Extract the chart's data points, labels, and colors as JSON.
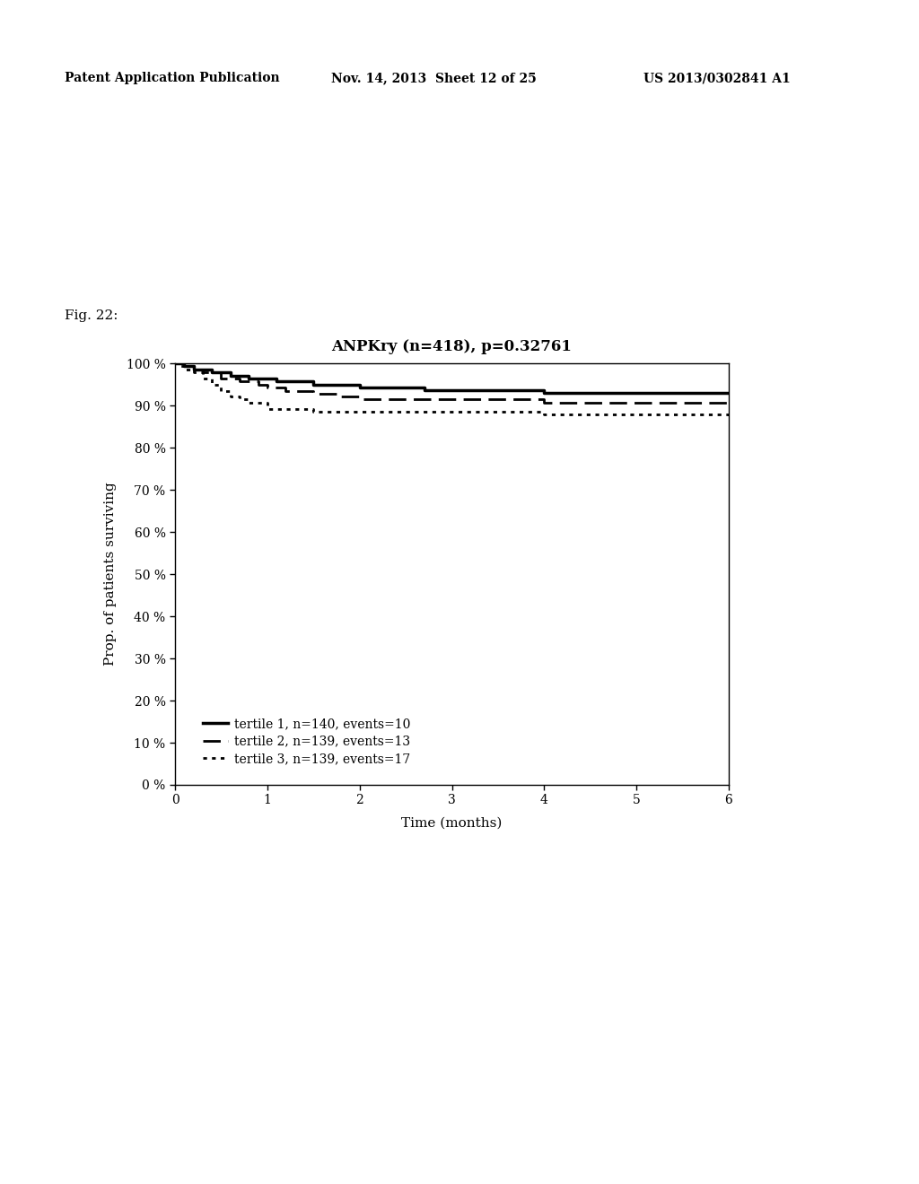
{
  "title": "ANPKry (n=418), p=0.32761",
  "xlabel": "Time (months)",
  "ylabel": "Prop. of patients surviving",
  "fig_label": "Fig. 22:",
  "header_left": "Patent Application Publication",
  "header_mid": "Nov. 14, 2013  Sheet 12 of 25",
  "header_right": "US 2013/0302841 A1",
  "xlim": [
    0,
    6
  ],
  "ylim": [
    0,
    100
  ],
  "xticks": [
    0,
    1,
    2,
    3,
    4,
    5,
    6
  ],
  "yticks": [
    0,
    10,
    20,
    30,
    40,
    50,
    60,
    70,
    80,
    90,
    100
  ],
  "ytick_labels": [
    "0 %",
    "10 %",
    "20 %",
    "30 %",
    "40 %",
    "50 %",
    "60 %",
    "70 %",
    "80 %",
    "90 %",
    "100 %"
  ],
  "tertile1": {
    "x": [
      0,
      0.05,
      0.1,
      0.15,
      0.2,
      0.3,
      0.4,
      0.5,
      0.6,
      0.8,
      1.0,
      1.1,
      1.3,
      1.5,
      1.8,
      2.0,
      2.3,
      2.7,
      3.0,
      3.5,
      4.0,
      4.5,
      5.0,
      5.5,
      6.0
    ],
    "y": [
      100,
      100,
      99.3,
      99.3,
      98.6,
      98.6,
      97.9,
      97.9,
      97.1,
      96.4,
      96.4,
      95.7,
      95.7,
      95.0,
      95.0,
      94.3,
      94.3,
      93.6,
      93.6,
      93.6,
      92.9,
      92.9,
      92.9,
      92.9,
      92.9
    ],
    "label": "tertile 1, n=140, events=10",
    "linestyle": "solid",
    "linewidth": 2.5,
    "color": "#000000"
  },
  "tertile2": {
    "x": [
      0,
      0.1,
      0.2,
      0.3,
      0.5,
      0.7,
      0.9,
      1.0,
      1.2,
      1.5,
      1.8,
      2.0,
      2.3,
      2.7,
      3.0,
      3.5,
      4.0,
      4.5,
      5.0,
      5.5,
      6.0
    ],
    "y": [
      100,
      99.3,
      98.6,
      97.8,
      96.4,
      95.7,
      95.0,
      94.2,
      93.5,
      92.8,
      92.1,
      91.4,
      91.4,
      91.4,
      91.4,
      91.4,
      90.7,
      90.7,
      90.7,
      90.7,
      90.7
    ],
    "label": "tertile 2, n=139, events=13",
    "linestyle": "dashed",
    "linewidth": 2.0,
    "color": "#000000"
  },
  "tertile3": {
    "x": [
      0,
      0.05,
      0.1,
      0.2,
      0.3,
      0.4,
      0.5,
      0.6,
      0.7,
      0.8,
      1.0,
      1.5,
      2.0,
      2.5,
      3.0,
      3.5,
      4.0,
      4.5,
      5.0,
      5.5,
      6.0
    ],
    "y": [
      100,
      99.3,
      98.6,
      97.8,
      96.4,
      95.0,
      93.5,
      92.1,
      91.4,
      90.6,
      89.2,
      88.5,
      88.5,
      88.5,
      88.5,
      88.5,
      87.8,
      87.8,
      87.8,
      87.8,
      87.1
    ],
    "label": "tertile 3, n=139, events=17",
    "linestyle": "dotted",
    "linewidth": 2.0,
    "color": "#000000"
  },
  "background_color": "#ffffff",
  "plot_bg_color": "#ffffff"
}
